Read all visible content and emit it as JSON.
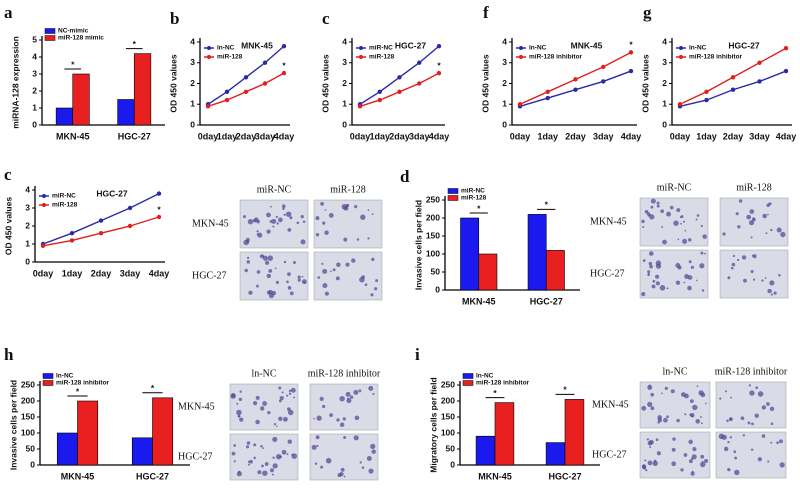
{
  "chart_data": [
    {
      "type": "bar",
      "panel": "a",
      "ylabel": "miRNA-128 expression",
      "categories": [
        "MKN-45",
        "HGC-27"
      ],
      "series": [
        {
          "name": "NC-mimic",
          "color": "#1a1aee",
          "values": [
            1.0,
            1.5
          ]
        },
        {
          "name": "miR-128 mimic",
          "color": "#e82020",
          "values": [
            3.0,
            4.2
          ]
        }
      ],
      "annotations": [
        "*",
        "*"
      ],
      "ylim": [
        0,
        5
      ],
      "yticks": [
        0,
        1,
        2,
        3,
        4,
        5
      ]
    },
    {
      "type": "line",
      "panel": "b",
      "title": "MNK-45",
      "ylabel": "OD 450 values",
      "categories": [
        "0day",
        "1day",
        "2day",
        "3day",
        "4day"
      ],
      "series": [
        {
          "name": "ln-NC",
          "color": "#2a2aa8",
          "values": [
            1.0,
            1.6,
            2.3,
            3.0,
            3.8
          ]
        },
        {
          "name": "miR-128",
          "color": "#e02020",
          "values": [
            0.9,
            1.2,
            1.6,
            2.0,
            2.5
          ]
        }
      ],
      "annotation": "*",
      "ylim": [
        0,
        4
      ],
      "yticks": [
        0,
        1,
        2,
        3,
        4
      ]
    },
    {
      "type": "line",
      "panel": "c",
      "title": "HGC-27",
      "ylabel": "OD 450 values",
      "categories": [
        "0day",
        "1day",
        "2day",
        "3day",
        "4day"
      ],
      "series": [
        {
          "name": "miR-NC",
          "color": "#2a2aa8",
          "values": [
            1.0,
            1.6,
            2.3,
            3.0,
            3.8
          ]
        },
        {
          "name": "miR-128",
          "color": "#e02020",
          "values": [
            0.9,
            1.2,
            1.6,
            2.0,
            2.5
          ]
        }
      ],
      "annotation": "*",
      "ylim": [
        0,
        4
      ],
      "yticks": [
        0,
        1,
        2,
        3,
        4
      ]
    },
    {
      "type": "line",
      "panel": "f",
      "title": "MNK-45",
      "ylabel": "OD 450 values",
      "categories": [
        "0day",
        "1day",
        "2day",
        "3day",
        "4day"
      ],
      "series": [
        {
          "name": "ln-NC",
          "color": "#2a2aa8",
          "values": [
            0.9,
            1.3,
            1.7,
            2.1,
            2.6
          ]
        },
        {
          "name": "miR-128 inhibitor",
          "color": "#e02020",
          "values": [
            1.0,
            1.6,
            2.2,
            2.8,
            3.5
          ]
        }
      ],
      "annotation": "*",
      "ylim": [
        0,
        4
      ],
      "yticks": [
        0,
        1,
        2,
        3,
        4
      ]
    },
    {
      "type": "line",
      "panel": "g",
      "title": "HGC-27",
      "ylabel": "OD 450 values",
      "categories": [
        "0day",
        "1day",
        "2day",
        "3day",
        "4day"
      ],
      "series": [
        {
          "name": "ln-NC",
          "color": "#2a2aa8",
          "values": [
            0.9,
            1.2,
            1.7,
            2.1,
            2.6
          ]
        },
        {
          "name": "miR-128 inhibitor",
          "color": "#e02020",
          "values": [
            1.0,
            1.6,
            2.3,
            3.0,
            3.7
          ]
        }
      ],
      "ylim": [
        0,
        4
      ],
      "yticks": [
        0,
        1,
        2,
        3,
        4
      ]
    },
    {
      "type": "line",
      "panel": "c",
      "title": "HGC-27",
      "ylabel": "OD 450 values",
      "categories": [
        "0day",
        "1day",
        "2day",
        "3day",
        "4day"
      ],
      "series": [
        {
          "name": "miR-NC",
          "color": "#2a2aa8",
          "values": [
            1.0,
            1.6,
            2.3,
            3.0,
            3.8
          ]
        },
        {
          "name": "miR-128",
          "color": "#e02020",
          "values": [
            0.9,
            1.2,
            1.6,
            2.0,
            2.5
          ]
        }
      ],
      "annotation": "*",
      "ylim": [
        0,
        4
      ],
      "yticks": [
        0,
        1,
        2,
        3,
        4
      ]
    },
    {
      "type": "bar",
      "panel": "d",
      "ylabel": "Invasive cells per field",
      "categories": [
        "MKN-45",
        "HGC-27"
      ],
      "series": [
        {
          "name": "miR-NC",
          "color": "#1a1aee",
          "values": [
            200,
            210
          ]
        },
        {
          "name": "miR-128",
          "color": "#e82020",
          "values": [
            100,
            110
          ]
        }
      ],
      "annotations": [
        "*",
        "*"
      ],
      "ylim": [
        0,
        250
      ],
      "yticks": [
        0,
        50,
        100,
        150,
        200,
        250
      ]
    },
    {
      "type": "bar",
      "panel": "h",
      "ylabel": "Invasive cells per field",
      "categories": [
        "MKN-45",
        "HGC-27"
      ],
      "series": [
        {
          "name": "ln-NC",
          "color": "#1a1aee",
          "values": [
            100,
            85
          ]
        },
        {
          "name": "miR-128 inhibitor",
          "color": "#e82020",
          "values": [
            200,
            210
          ]
        }
      ],
      "annotations": [
        "*",
        "*"
      ],
      "ylim": [
        0,
        250
      ],
      "yticks": [
        0,
        50,
        100,
        150,
        200,
        250
      ]
    },
    {
      "type": "bar",
      "panel": "i",
      "ylabel": "Migratory cells per field",
      "categories": [
        "MKN-45",
        "HGC-27"
      ],
      "series": [
        {
          "name": "ln-NC",
          "color": "#1a1aee",
          "values": [
            90,
            70
          ]
        },
        {
          "name": "miR-128 inhibitor",
          "color": "#e82020",
          "values": [
            195,
            205
          ]
        }
      ],
      "annotations": [
        "*",
        "*"
      ],
      "ylim": [
        0,
        250
      ],
      "yticks": [
        0,
        50,
        100,
        150,
        200,
        250
      ]
    }
  ],
  "micrographs": [
    {
      "columns": [
        "miR-NC",
        "miR-128"
      ],
      "rows": [
        "MKN-45",
        "HGC-27"
      ]
    },
    {
      "columns": [
        "miR-NC",
        "miR-128"
      ],
      "rows": [
        "MKN-45",
        "HGC-27"
      ]
    },
    {
      "columns": [
        "ln-NC",
        "miR-128 inhibitor"
      ],
      "rows": [
        "MKN-45",
        "HGC-27"
      ]
    },
    {
      "columns": [
        "ln-NC",
        "miR-128 inhibitor"
      ],
      "rows": [
        "MKN-45",
        "HGC-27"
      ]
    }
  ]
}
